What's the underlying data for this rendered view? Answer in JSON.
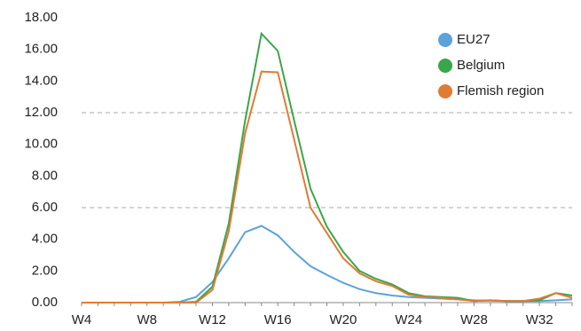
{
  "chart_data": {
    "type": "line",
    "categories": [
      "W4",
      null,
      null,
      null,
      "W8",
      null,
      null,
      null,
      "W12",
      null,
      null,
      null,
      "W16",
      null,
      null,
      null,
      "W20",
      null,
      null,
      null,
      "W24",
      null,
      null,
      null,
      "W28",
      null,
      null,
      null,
      "W32",
      null,
      null
    ],
    "series": [
      {
        "name": "EU27",
        "color": "#5ba3d9",
        "values": [
          0,
          0,
          0,
          0,
          0,
          0,
          0.05,
          0.35,
          1.3,
          2.8,
          4.45,
          4.85,
          4.25,
          3.2,
          2.3,
          1.75,
          1.25,
          0.85,
          0.6,
          0.45,
          0.35,
          0.3,
          0.25,
          0.2,
          0.15,
          0.12,
          0.1,
          0.1,
          0.1,
          0.15,
          0.2
        ]
      },
      {
        "name": "Belgium",
        "color": "#3aa64a",
        "values": [
          0,
          0,
          0,
          0,
          0,
          0,
          0,
          0.05,
          1.0,
          5.0,
          11.5,
          17.0,
          15.9,
          11.5,
          7.2,
          4.8,
          3.2,
          2.0,
          1.5,
          1.15,
          0.6,
          0.4,
          0.35,
          0.3,
          0.1,
          0.15,
          0.1,
          0.1,
          0.15,
          0.6,
          0.45
        ]
      },
      {
        "name": "Flemish region",
        "color": "#e07b34",
        "values": [
          0,
          0,
          0,
          0,
          0,
          0,
          0,
          0,
          0.8,
          4.5,
          10.7,
          14.6,
          14.55,
          10.3,
          6.0,
          4.4,
          2.8,
          1.85,
          1.35,
          1.05,
          0.5,
          0.35,
          0.3,
          0.2,
          0.1,
          0.15,
          0.1,
          0.1,
          0.25,
          0.6,
          0.3
        ]
      }
    ],
    "ylim": [
      0,
      18
    ],
    "yticks": [
      {
        "value": 0,
        "label": "0.00"
      },
      {
        "value": 2,
        "label": "2.00"
      },
      {
        "value": 4,
        "label": "4.00"
      },
      {
        "value": 6,
        "label": "6.00"
      },
      {
        "value": 8,
        "label": "8.00"
      },
      {
        "value": 10,
        "label": "10.00"
      },
      {
        "value": 12,
        "label": "12.00"
      },
      {
        "value": 14,
        "label": "14.00"
      },
      {
        "value": 16,
        "label": "16.00"
      },
      {
        "value": 18,
        "label": "18.00"
      }
    ],
    "grid": [
      6,
      12
    ],
    "legend": "top-right"
  }
}
